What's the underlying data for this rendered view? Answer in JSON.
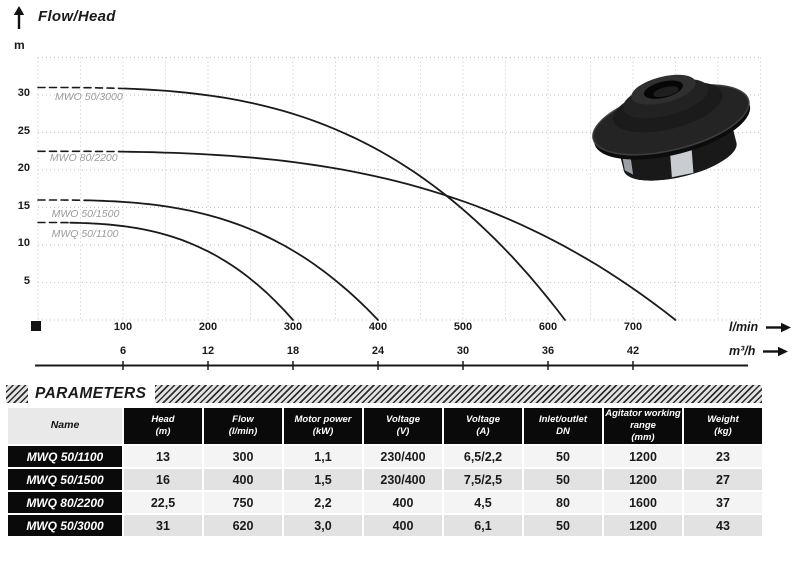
{
  "chart": {
    "title": "Flow/Head",
    "y_axis_unit": "m",
    "x_axis_unit_primary": "l/min",
    "x_axis_unit_secondary": "m³/h"
  },
  "chart_data": {
    "type": "line",
    "title": "Flow/Head",
    "ylabel": "m",
    "xlabel_primary": "l/min",
    "xlabel_secondary": "m³/h",
    "ylim": [
      0,
      35
    ],
    "xlim_lmin": [
      0,
      850
    ],
    "yticks_m": [
      5,
      10,
      15,
      20,
      25,
      30
    ],
    "xticks_lmin": [
      100,
      200,
      300,
      400,
      500,
      600,
      700
    ],
    "xticks_m3h": [
      6,
      12,
      18,
      24,
      30,
      36,
      42
    ],
    "grid": {
      "style": "dotted",
      "x_step_lmin": 50,
      "y_step_m": 5
    },
    "curve_exponent": 3,
    "series": [
      {
        "label": "MWO 50/3000",
        "shutoff_head_m": 31,
        "max_flow_lmin": 620,
        "dashed_until_lmin": 102,
        "label_pos": {
          "q_lmin": 20,
          "head_m": 29.7
        }
      },
      {
        "label": "MWO 80/2200",
        "shutoff_head_m": 22.5,
        "max_flow_lmin": 750,
        "dashed_until_lmin": 96,
        "label_pos": {
          "q_lmin": 14,
          "head_m": 21.6
        }
      },
      {
        "label": "MWO 50/1500",
        "shutoff_head_m": 16,
        "max_flow_lmin": 400,
        "dashed_until_lmin": 55,
        "label_pos": {
          "q_lmin": 16,
          "head_m": 14.2
        }
      },
      {
        "label": "MWQ 50/1100",
        "shutoff_head_m": 13,
        "max_flow_lmin": 300,
        "dashed_until_lmin": 38,
        "label_pos": {
          "q_lmin": 16,
          "head_m": 11.5
        }
      }
    ]
  },
  "parameters": {
    "title": "PARAMETERS",
    "columns": [
      {
        "label": "Name",
        "unit": ""
      },
      {
        "label": "Head",
        "unit": "(m)"
      },
      {
        "label": "Flow",
        "unit": "(l/min)"
      },
      {
        "label": "Motor power",
        "unit": "(kW)"
      },
      {
        "label": "Voltage",
        "unit": "(V)"
      },
      {
        "label": "Voltage",
        "unit": "(A)"
      },
      {
        "label": "Inlet/outlet",
        "unit": "DN"
      },
      {
        "label": "Agitator working range",
        "unit": "(mm)"
      },
      {
        "label": "Weight",
        "unit": "(kg)"
      }
    ],
    "rows": [
      {
        "name": "MWQ 50/1100",
        "values": [
          "13",
          "300",
          "1,1",
          "230/400",
          "6,5/2,2",
          "50",
          "1200",
          "23"
        ]
      },
      {
        "name": "MWQ 50/1500",
        "values": [
          "16",
          "400",
          "1,5",
          "230/400",
          "7,5/2,5",
          "50",
          "1200",
          "27"
        ]
      },
      {
        "name": "MWQ 80/2200",
        "values": [
          "22,5",
          "750",
          "2,2",
          "400",
          "4,5",
          "80",
          "1600",
          "37"
        ]
      },
      {
        "name": "MWQ 50/3000",
        "values": [
          "31",
          "620",
          "3,0",
          "400",
          "6,1",
          "50",
          "1200",
          "43"
        ]
      }
    ]
  }
}
